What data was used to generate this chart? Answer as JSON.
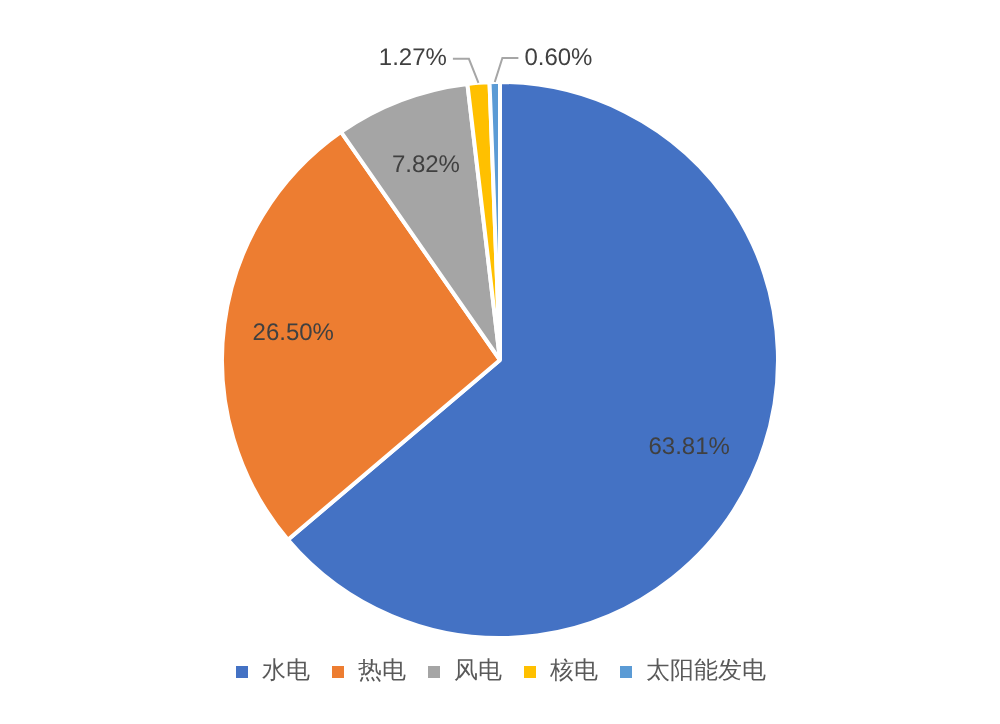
{
  "chart_data": {
    "type": "pie",
    "categories": [
      "水电",
      "热电",
      "风电",
      "核电",
      "太阳能发电"
    ],
    "values": [
      63.81,
      26.5,
      7.82,
      1.27,
      0.6
    ],
    "colors": [
      "#4472c4",
      "#ed7d31",
      "#a5a5a5",
      "#ffc000",
      "#5b9bd5"
    ],
    "value_labels": [
      "63.81%",
      "26.50%",
      "7.82%",
      "1.27%",
      "0.60%"
    ],
    "legend": "bottom"
  }
}
